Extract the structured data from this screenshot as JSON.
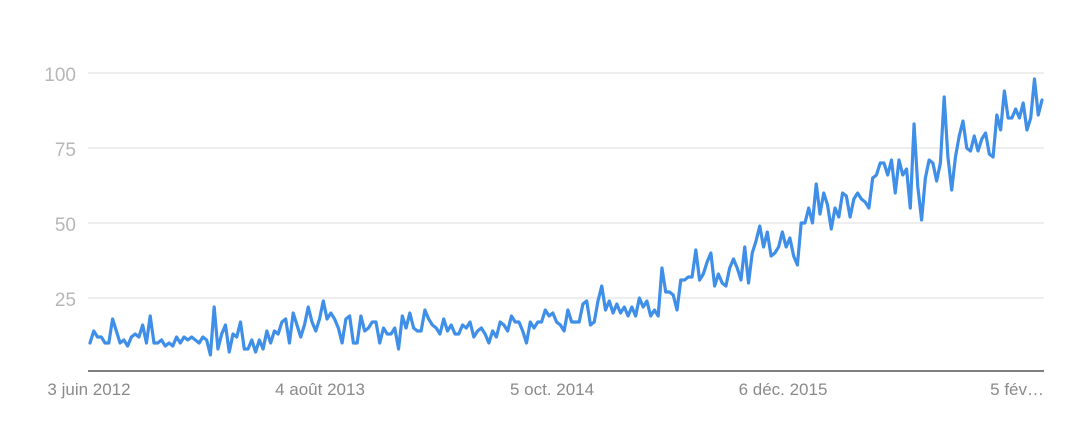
{
  "chart_data": {
    "type": "line",
    "title": "",
    "xlabel": "",
    "ylabel": "",
    "ylim": [
      0,
      100
    ],
    "y_ticks": [
      "25",
      "50",
      "75",
      "100"
    ],
    "x_tick_labels": [
      "3 juin 2012",
      "4 août 2013",
      "5 oct. 2014",
      "6 déc. 2015",
      "5 fév…"
    ],
    "grid": true,
    "colors": {
      "line": "#3f8fe8",
      "grid": "#dcdcdc",
      "axis": "#555555"
    },
    "series": [
      {
        "values": [
          10,
          14,
          12,
          12,
          10,
          10,
          18,
          14,
          10,
          11,
          9,
          12,
          13,
          12,
          16,
          10,
          19,
          10,
          10,
          11,
          9,
          10,
          9,
          12,
          10,
          12,
          11,
          12,
          11,
          10,
          12,
          11,
          6,
          22,
          8,
          13,
          16,
          7,
          13,
          12,
          17,
          8,
          8,
          11,
          7,
          11,
          8,
          14,
          10,
          14,
          13,
          17,
          18,
          10,
          20,
          16,
          12,
          16,
          22,
          17,
          14,
          18,
          24,
          18,
          20,
          18,
          15,
          10,
          18,
          19,
          10,
          10,
          19,
          14,
          15,
          17,
          17,
          10,
          15,
          13,
          13,
          15,
          8,
          19,
          15,
          20,
          15,
          14,
          14,
          21,
          18,
          16,
          15,
          13,
          18,
          14,
          16,
          13,
          13,
          16,
          15,
          17,
          12,
          14,
          15,
          13,
          10,
          14,
          12,
          17,
          16,
          14,
          19,
          17,
          17,
          14,
          10,
          17,
          15,
          17,
          17,
          21,
          19,
          20,
          17,
          16,
          14,
          21,
          17,
          17,
          17,
          23,
          24,
          16,
          17,
          24,
          29,
          21,
          24,
          20,
          23,
          20,
          22,
          19,
          22,
          19,
          25,
          22,
          24,
          19,
          21,
          19,
          35,
          27,
          27,
          26,
          21,
          31,
          31,
          32,
          32,
          41,
          31,
          33,
          37,
          40,
          29,
          33,
          30,
          29,
          35,
          38,
          35,
          31,
          42,
          30,
          40,
          44,
          49,
          42,
          47,
          39,
          40,
          42,
          47,
          42,
          45,
          39,
          36,
          50,
          50,
          55,
          50,
          63,
          53,
          60,
          56,
          48,
          55,
          52,
          60,
          59,
          52,
          58,
          60,
          58,
          57,
          55,
          65,
          66,
          70,
          70,
          66,
          71,
          60,
          71,
          66,
          68,
          55,
          83,
          62,
          51,
          65,
          71,
          70,
          64,
          70,
          92,
          72,
          61,
          72,
          79,
          84,
          75,
          74,
          79,
          74,
          78,
          80,
          73,
          72,
          86,
          81,
          94,
          85,
          85,
          88,
          85,
          90,
          81,
          85,
          98,
          86,
          91
        ]
      }
    ]
  }
}
